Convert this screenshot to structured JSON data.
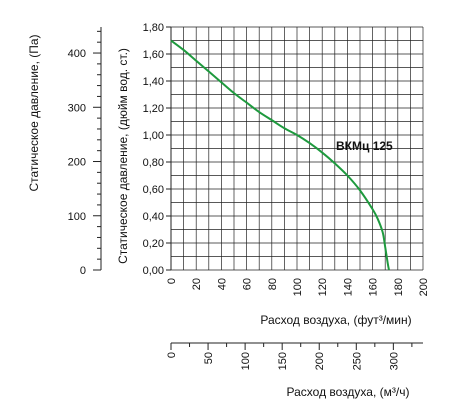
{
  "chart_data": {
    "type": "line",
    "xlabel": "Расход воздуха, (фут³/мин)",
    "ylabel": "Статическое давление, (дюйм вод. ст.)",
    "xlim": [
      0,
      200
    ],
    "ylim": [
      0,
      1.8
    ],
    "x_ticks": [
      "0",
      "20",
      "40",
      "60",
      "80",
      "100",
      "120",
      "140",
      "160",
      "180",
      "200"
    ],
    "y_ticks": [
      "0,00",
      "0,20",
      "0,40",
      "0,60",
      "0,80",
      "1,00",
      "1,20",
      "1,40",
      "1,60",
      "1,80"
    ],
    "grid": true,
    "series": [
      {
        "name": "ВКМц 125",
        "color": "#1e9a3e",
        "x": [
          0,
          10,
          20,
          30,
          40,
          50,
          60,
          70,
          80,
          90,
          100,
          110,
          120,
          130,
          140,
          150,
          160,
          164,
          168,
          170,
          172,
          173
        ],
        "y": [
          1.7,
          1.63,
          1.55,
          1.47,
          1.39,
          1.31,
          1.24,
          1.17,
          1.11,
          1.05,
          1.0,
          0.94,
          0.87,
          0.79,
          0.7,
          0.59,
          0.45,
          0.38,
          0.28,
          0.17,
          0.05,
          0.0
        ]
      }
    ],
    "secondary_axes": {
      "pa": {
        "label": "Статическое давление, (Па)",
        "range": [
          0,
          448
        ],
        "ticks": [
          "0",
          "100",
          "200",
          "300",
          "400"
        ]
      },
      "m3h": {
        "label": "Расход воздуха, (м³/ч)",
        "range": [
          0,
          340
        ],
        "ticks": [
          "0",
          "50",
          "100",
          "150",
          "200",
          "250",
          "300"
        ]
      }
    }
  }
}
